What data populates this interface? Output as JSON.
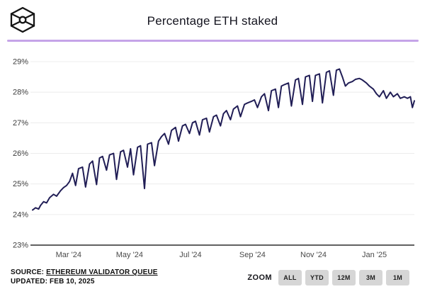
{
  "header": {
    "title": "Percentage ETH staked",
    "logo": "wireframe-cube-with-sphere"
  },
  "colors": {
    "line": "#211e56",
    "grid": "#ececec",
    "axis": "#2d2d2d",
    "divider": "#c5a4e8",
    "button_bg": "#d6d6d6",
    "title_text": "#14141f"
  },
  "footer": {
    "source_prefix": "SOURCE: ",
    "source_link": "ETHEREUM VALIDATOR QUEUE",
    "updated": "UPDATED: FEB 10, 2025"
  },
  "zoom": {
    "label": "ZOOM",
    "buttons": [
      "ALL",
      "YTD",
      "12M",
      "3M",
      "1M"
    ]
  },
  "chart_data": {
    "type": "line",
    "title": "Percentage ETH staked",
    "xlabel": "",
    "ylabel": "",
    "ylim": [
      23,
      29
    ],
    "yticks": [
      23,
      24,
      25,
      26,
      27,
      28,
      29
    ],
    "ytick_suffix": "%",
    "grid": true,
    "legend": false,
    "x_range": [
      "2024-01-25",
      "2025-02-10"
    ],
    "x_ticks": [
      {
        "date": "2024-03-01",
        "label": "Mar '24"
      },
      {
        "date": "2024-05-01",
        "label": "May '24"
      },
      {
        "date": "2024-07-01",
        "label": "Jul '24"
      },
      {
        "date": "2024-09-01",
        "label": "Sep '24"
      },
      {
        "date": "2024-11-01",
        "label": "Nov '24"
      },
      {
        "date": "2025-01-01",
        "label": "Jan '25"
      }
    ],
    "points": [
      [
        "2024-01-25",
        24.15
      ],
      [
        "2024-01-28",
        24.22
      ],
      [
        "2024-01-31",
        24.18
      ],
      [
        "2024-02-02",
        24.3
      ],
      [
        "2024-02-05",
        24.42
      ],
      [
        "2024-02-08",
        24.38
      ],
      [
        "2024-02-11",
        24.55
      ],
      [
        "2024-02-15",
        24.66
      ],
      [
        "2024-02-18",
        24.6
      ],
      [
        "2024-02-22",
        24.78
      ],
      [
        "2024-02-25",
        24.88
      ],
      [
        "2024-02-28",
        24.95
      ],
      [
        "2024-03-02",
        25.08
      ],
      [
        "2024-03-05",
        25.35
      ],
      [
        "2024-03-08",
        24.95
      ],
      [
        "2024-03-11",
        25.5
      ],
      [
        "2024-03-15",
        25.55
      ],
      [
        "2024-03-18",
        24.9
      ],
      [
        "2024-03-22",
        25.65
      ],
      [
        "2024-03-25",
        25.75
      ],
      [
        "2024-03-29",
        24.98
      ],
      [
        "2024-04-01",
        25.85
      ],
      [
        "2024-04-04",
        25.9
      ],
      [
        "2024-04-08",
        25.45
      ],
      [
        "2024-04-11",
        25.95
      ],
      [
        "2024-04-15",
        26.0
      ],
      [
        "2024-04-18",
        25.15
      ],
      [
        "2024-04-22",
        26.05
      ],
      [
        "2024-04-25",
        26.1
      ],
      [
        "2024-04-29",
        25.55
      ],
      [
        "2024-05-02",
        26.15
      ],
      [
        "2024-05-05",
        25.3
      ],
      [
        "2024-05-09",
        26.2
      ],
      [
        "2024-05-12",
        26.25
      ],
      [
        "2024-05-16",
        24.85
      ],
      [
        "2024-05-19",
        26.3
      ],
      [
        "2024-05-23",
        26.35
      ],
      [
        "2024-05-26",
        25.6
      ],
      [
        "2024-05-30",
        26.4
      ],
      [
        "2024-06-02",
        26.55
      ],
      [
        "2024-06-05",
        26.65
      ],
      [
        "2024-06-09",
        26.3
      ],
      [
        "2024-06-12",
        26.75
      ],
      [
        "2024-06-16",
        26.85
      ],
      [
        "2024-06-19",
        26.4
      ],
      [
        "2024-06-23",
        26.9
      ],
      [
        "2024-06-26",
        26.95
      ],
      [
        "2024-06-30",
        26.65
      ],
      [
        "2024-07-03",
        27.0
      ],
      [
        "2024-07-06",
        27.05
      ],
      [
        "2024-07-10",
        26.6
      ],
      [
        "2024-07-13",
        27.1
      ],
      [
        "2024-07-17",
        27.15
      ],
      [
        "2024-07-20",
        26.7
      ],
      [
        "2024-07-24",
        27.2
      ],
      [
        "2024-07-27",
        27.25
      ],
      [
        "2024-07-31",
        26.9
      ],
      [
        "2024-08-03",
        27.3
      ],
      [
        "2024-08-06",
        27.4
      ],
      [
        "2024-08-10",
        27.1
      ],
      [
        "2024-08-13",
        27.45
      ],
      [
        "2024-08-17",
        27.55
      ],
      [
        "2024-08-20",
        27.2
      ],
      [
        "2024-08-24",
        27.6
      ],
      [
        "2024-08-27",
        27.65
      ],
      [
        "2024-08-31",
        27.7
      ],
      [
        "2024-09-03",
        27.75
      ],
      [
        "2024-09-06",
        27.5
      ],
      [
        "2024-09-10",
        27.85
      ],
      [
        "2024-09-13",
        27.95
      ],
      [
        "2024-09-17",
        27.4
      ],
      [
        "2024-09-20",
        28.05
      ],
      [
        "2024-09-24",
        28.1
      ],
      [
        "2024-09-27",
        27.5
      ],
      [
        "2024-09-30",
        28.2
      ],
      [
        "2024-10-03",
        28.25
      ],
      [
        "2024-10-07",
        28.3
      ],
      [
        "2024-10-10",
        27.55
      ],
      [
        "2024-10-14",
        28.4
      ],
      [
        "2024-10-17",
        28.45
      ],
      [
        "2024-10-21",
        27.6
      ],
      [
        "2024-10-24",
        28.5
      ],
      [
        "2024-10-28",
        28.55
      ],
      [
        "2024-10-31",
        27.7
      ],
      [
        "2024-11-03",
        28.55
      ],
      [
        "2024-11-07",
        28.6
      ],
      [
        "2024-11-10",
        27.65
      ],
      [
        "2024-11-14",
        28.65
      ],
      [
        "2024-11-17",
        28.7
      ],
      [
        "2024-11-21",
        27.9
      ],
      [
        "2024-11-24",
        28.72
      ],
      [
        "2024-11-27",
        28.76
      ],
      [
        "2024-11-30",
        28.5
      ],
      [
        "2024-12-03",
        28.2
      ],
      [
        "2024-12-06",
        28.3
      ],
      [
        "2024-12-10",
        28.35
      ],
      [
        "2024-12-13",
        28.42
      ],
      [
        "2024-12-17",
        28.45
      ],
      [
        "2024-12-20",
        28.4
      ],
      [
        "2024-12-24",
        28.3
      ],
      [
        "2024-12-27",
        28.2
      ],
      [
        "2024-12-31",
        28.1
      ],
      [
        "2025-01-03",
        27.95
      ],
      [
        "2025-01-06",
        27.85
      ],
      [
        "2025-01-10",
        28.05
      ],
      [
        "2025-01-13",
        27.8
      ],
      [
        "2025-01-17",
        28.0
      ],
      [
        "2025-01-20",
        27.85
      ],
      [
        "2025-01-24",
        27.95
      ],
      [
        "2025-01-27",
        27.8
      ],
      [
        "2025-01-31",
        27.85
      ],
      [
        "2025-02-03",
        27.8
      ],
      [
        "2025-02-06",
        27.85
      ],
      [
        "2025-02-08",
        27.5
      ],
      [
        "2025-02-10",
        27.72
      ]
    ]
  }
}
